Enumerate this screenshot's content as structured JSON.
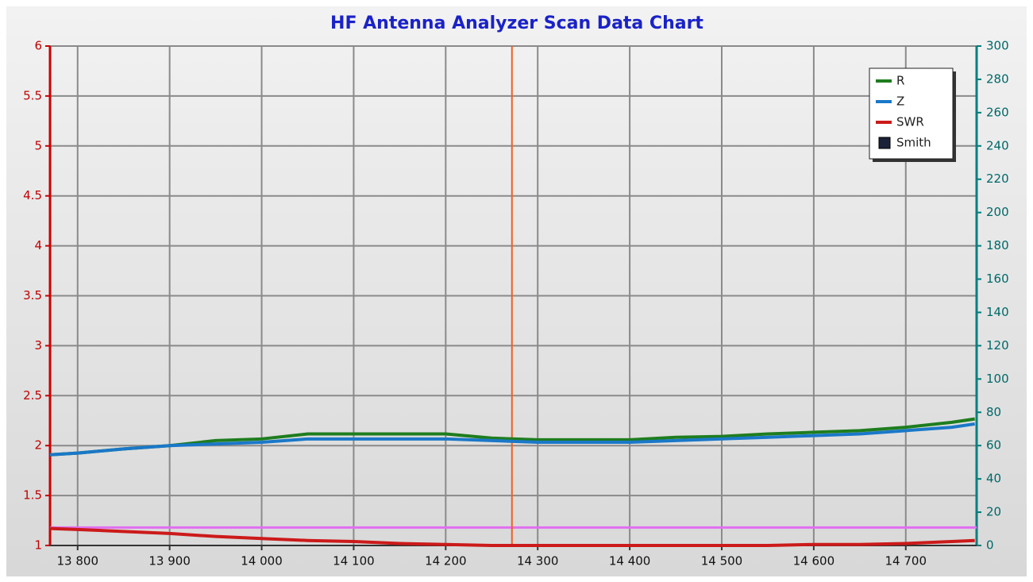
{
  "chart_data": {
    "type": "line",
    "title": "HF Antenna Analyzer Scan Data Chart",
    "x": [
      13770,
      13800,
      13850,
      13900,
      13950,
      14000,
      14050,
      14100,
      14150,
      14200,
      14250,
      14300,
      14350,
      14400,
      14450,
      14500,
      14550,
      14600,
      14650,
      14700,
      14750,
      14775
    ],
    "series": [
      {
        "name": "R",
        "color": "#1e7d1e",
        "axis": "y2",
        "values": [
          54.5,
          55.5,
          58,
          60,
          63,
          64,
          67,
          67,
          67,
          67,
          64.5,
          63.5,
          63.5,
          63.5,
          65,
          65.5,
          67,
          68,
          69,
          71,
          74,
          76
        ]
      },
      {
        "name": "Z",
        "color": "#1a78c8",
        "axis": "y2",
        "values": [
          54.5,
          55.5,
          58,
          60,
          61,
          62,
          64,
          64,
          64,
          64,
          63,
          62,
          62,
          62,
          63,
          64,
          65,
          66,
          67,
          69,
          71,
          73
        ]
      },
      {
        "name": "SWR",
        "color": "#cc1a1a",
        "axis": "y",
        "values": [
          1.17,
          1.16,
          1.14,
          1.12,
          1.09,
          1.07,
          1.05,
          1.04,
          1.02,
          1.01,
          1.0,
          1.0,
          1.0,
          1.0,
          1.0,
          1.0,
          1.0,
          1.01,
          1.01,
          1.02,
          1.04,
          1.05
        ]
      }
    ],
    "legend_only": [
      {
        "name": "Smith",
        "color": "#1a2238"
      }
    ],
    "markers": {
      "x": 14272,
      "x_color": "#f06020",
      "swr": 1.18,
      "swr_color": "#e070f0"
    },
    "xlim": [
      13770,
      14777
    ],
    "xticks": [
      {
        "value": 13800,
        "label": "13 800"
      },
      {
        "value": 13900,
        "label": "13 900"
      },
      {
        "value": 14000,
        "label": "14 000"
      },
      {
        "value": 14100,
        "label": "14 100"
      },
      {
        "value": 14200,
        "label": "14 200"
      },
      {
        "value": 14300,
        "label": "14 300"
      },
      {
        "value": 14400,
        "label": "14 400"
      },
      {
        "value": 14500,
        "label": "14 500"
      },
      {
        "value": 14600,
        "label": "14 600"
      },
      {
        "value": 14700,
        "label": "14 700"
      }
    ],
    "ylim": [
      1,
      6
    ],
    "yticks": [
      1,
      1.5,
      2,
      2.5,
      3,
      3.5,
      4,
      4.5,
      5,
      5.5,
      6
    ],
    "y2lim": [
      0,
      300
    ],
    "y2ticks": [
      0,
      20,
      40,
      60,
      80,
      100,
      120,
      140,
      160,
      180,
      200,
      220,
      240,
      260,
      280,
      300
    ],
    "grid": true,
    "legend": "upper right"
  }
}
